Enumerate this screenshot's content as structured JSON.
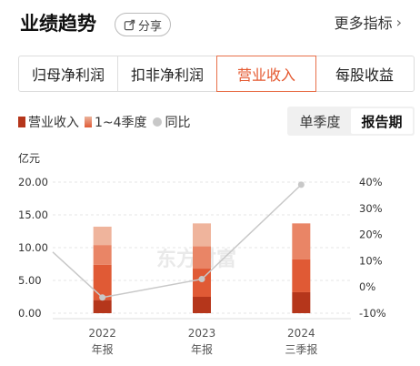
{
  "header": {
    "title": "业绩趋势",
    "share_label": "分享",
    "more_label": "更多指标"
  },
  "tabs": [
    {
      "label": "归母净利润",
      "active": false
    },
    {
      "label": "扣非净利润",
      "active": false
    },
    {
      "label": "营业收入",
      "active": true
    },
    {
      "label": "每股收益",
      "active": false
    }
  ],
  "legend": {
    "revenue": "营业收入",
    "quarters": "1~4季度",
    "yoy": "同比"
  },
  "period_toggle": {
    "options": [
      "单季度",
      "报告期"
    ],
    "active": "报告期"
  },
  "watermark": "东方财富",
  "colors": {
    "accent": "#e4572e",
    "q1": "#b5361b",
    "q2": "#e05a35",
    "q3": "#e98566",
    "q4": "#efb49c",
    "yoy_line": "#c8c8c8"
  },
  "chart_data": {
    "type": "bar",
    "y_unit": "亿元",
    "categories": [
      "2022",
      "2023",
      "2024"
    ],
    "category_sublabels": [
      "年报",
      "年报",
      "三季报"
    ],
    "stacked": true,
    "series": [
      {
        "name": "Q1",
        "values": [
          2.0,
          2.5,
          3.2
        ]
      },
      {
        "name": "Q2",
        "values": [
          5.4,
          4.3,
          5.0
        ]
      },
      {
        "name": "Q3",
        "values": [
          3.0,
          3.4,
          5.5
        ]
      },
      {
        "name": "Q4",
        "values": [
          2.8,
          3.5,
          0
        ]
      }
    ],
    "totals": [
      13.2,
      13.7,
      13.7
    ],
    "yoy": {
      "name": "同比",
      "values": [
        -4,
        3,
        39
      ]
    },
    "y_left": {
      "ticks": [
        "20.00",
        "15.00",
        "10.00",
        "5.00",
        "0.00"
      ],
      "range": [
        0,
        20
      ]
    },
    "y_right": {
      "ticks": [
        "40%",
        "30%",
        "20%",
        "10%",
        "0%",
        "-10%"
      ],
      "range": [
        -10,
        40
      ]
    },
    "grid": true
  }
}
